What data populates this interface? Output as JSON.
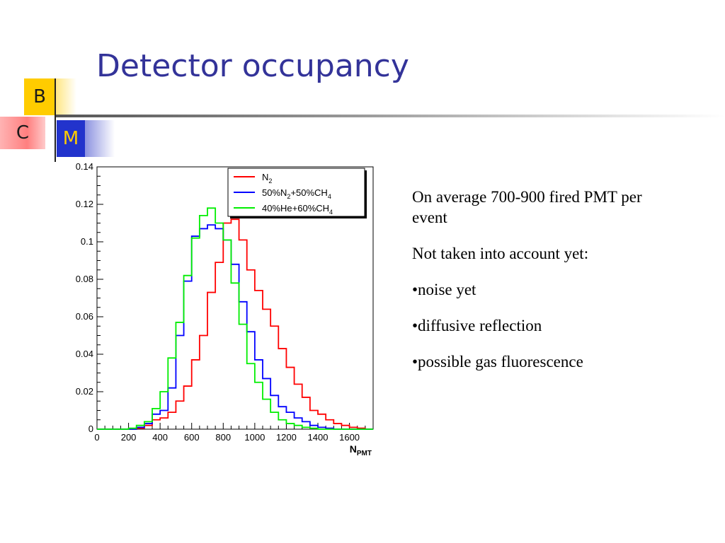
{
  "slide": {
    "title": "Detector occupancy",
    "logo": {
      "b": "B",
      "c": "C",
      "m": "M"
    }
  },
  "text": {
    "line1": "On average 700-900 fired PMT per event",
    "line2": "Not taken into account yet:",
    "bullets": [
      "•noise yet",
      "•diffusive reflection",
      "•possible gas fluorescence"
    ]
  },
  "chart_data": {
    "type": "line",
    "step": true,
    "xlabel": "N",
    "xlabel_sub": "PMT",
    "xlim": [
      0,
      1750
    ],
    "ylim": [
      0,
      0.14
    ],
    "xticks": [
      0,
      200,
      400,
      600,
      800,
      1000,
      1200,
      1400,
      1600
    ],
    "yticks": [
      0,
      0.02,
      0.04,
      0.06,
      0.08,
      0.1,
      0.12,
      0.14
    ],
    "ytick_labels": [
      "0",
      "0.02",
      "0.04",
      "0.06",
      "0.08",
      "0.1",
      "0.12",
      "0.14"
    ],
    "bin_width": 50,
    "bin_starts": [
      0,
      50,
      100,
      150,
      200,
      250,
      300,
      350,
      400,
      450,
      500,
      550,
      600,
      650,
      700,
      750,
      800,
      850,
      900,
      950,
      1000,
      1050,
      1100,
      1150,
      1200,
      1250,
      1300,
      1350,
      1400,
      1450,
      1500,
      1550,
      1600,
      1650,
      1700
    ],
    "legend_position": "top-right",
    "series": [
      {
        "name": "N",
        "name_sub": "2",
        "name_tail": "",
        "color": "#ff0000",
        "values": [
          0,
          0,
          0,
          0,
          0,
          0.0005,
          0.002,
          0.005,
          0.006,
          0.009,
          0.015,
          0.023,
          0.037,
          0.05,
          0.073,
          0.089,
          0.11,
          0.112,
          0.101,
          0.085,
          0.074,
          0.064,
          0.055,
          0.043,
          0.033,
          0.024,
          0.017,
          0.01,
          0.008,
          0.005,
          0.003,
          0.002,
          0.001,
          0.0005,
          0
        ]
      },
      {
        "name": "50%N",
        "name_sub": "2",
        "name_tail": "+50%CH",
        "name_sub2": "4",
        "color": "#0000ff",
        "values": [
          0,
          0,
          0,
          0,
          0,
          0.001,
          0.003,
          0.008,
          0.01,
          0.022,
          0.05,
          0.079,
          0.103,
          0.107,
          0.109,
          0.107,
          0.101,
          0.088,
          0.068,
          0.052,
          0.037,
          0.027,
          0.018,
          0.012,
          0.009,
          0.006,
          0.004,
          0.002,
          0.001,
          0.0005,
          0,
          0,
          0,
          0,
          0
        ]
      },
      {
        "name": "40%He+60%CH",
        "name_sub": "4",
        "name_tail": "",
        "color": "#00ee00",
        "values": [
          0,
          0,
          0,
          0,
          0.0005,
          0.002,
          0.004,
          0.011,
          0.02,
          0.038,
          0.057,
          0.082,
          0.102,
          0.114,
          0.118,
          0.11,
          0.101,
          0.078,
          0.056,
          0.035,
          0.025,
          0.016,
          0.009,
          0.005,
          0.003,
          0.002,
          0.001,
          0.0005,
          0,
          0,
          0,
          0,
          0,
          0,
          0
        ]
      }
    ]
  }
}
